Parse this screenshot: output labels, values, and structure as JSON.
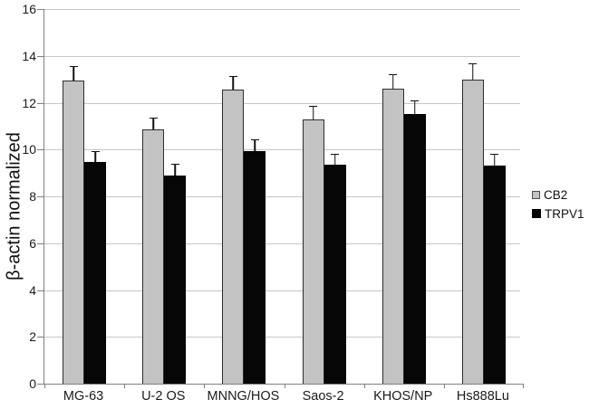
{
  "chart_data": {
    "type": "bar",
    "title": "",
    "ylabel": "β-actin normalized",
    "xlabel": "",
    "ylim": [
      0,
      16
    ],
    "ytick_step": 2,
    "grid": true,
    "legend_position": "right",
    "categories": [
      "MG-63",
      "U-2 OS",
      "MNNG/HOS",
      "Saos-2",
      "KHOS/NP",
      "Hs888Lu"
    ],
    "series": [
      {
        "name": "CB2",
        "color": "#c3c3c3",
        "border": "#2e2e2e",
        "swatch_border": "#4a4a4a",
        "swatch_size": 9,
        "values": [
          12.95,
          10.85,
          12.55,
          11.3,
          12.6,
          13.0
        ],
        "errors": [
          0.65,
          0.55,
          0.6,
          0.6,
          0.65,
          0.7
        ]
      },
      {
        "name": "TRPV1",
        "color": "#060606",
        "border": "#000000",
        "swatch_border": "#000000",
        "swatch_size": 10,
        "values": [
          9.45,
          8.9,
          9.95,
          9.35,
          11.5,
          9.3
        ],
        "errors": [
          0.5,
          0.5,
          0.5,
          0.5,
          0.6,
          0.55
        ]
      }
    ]
  }
}
